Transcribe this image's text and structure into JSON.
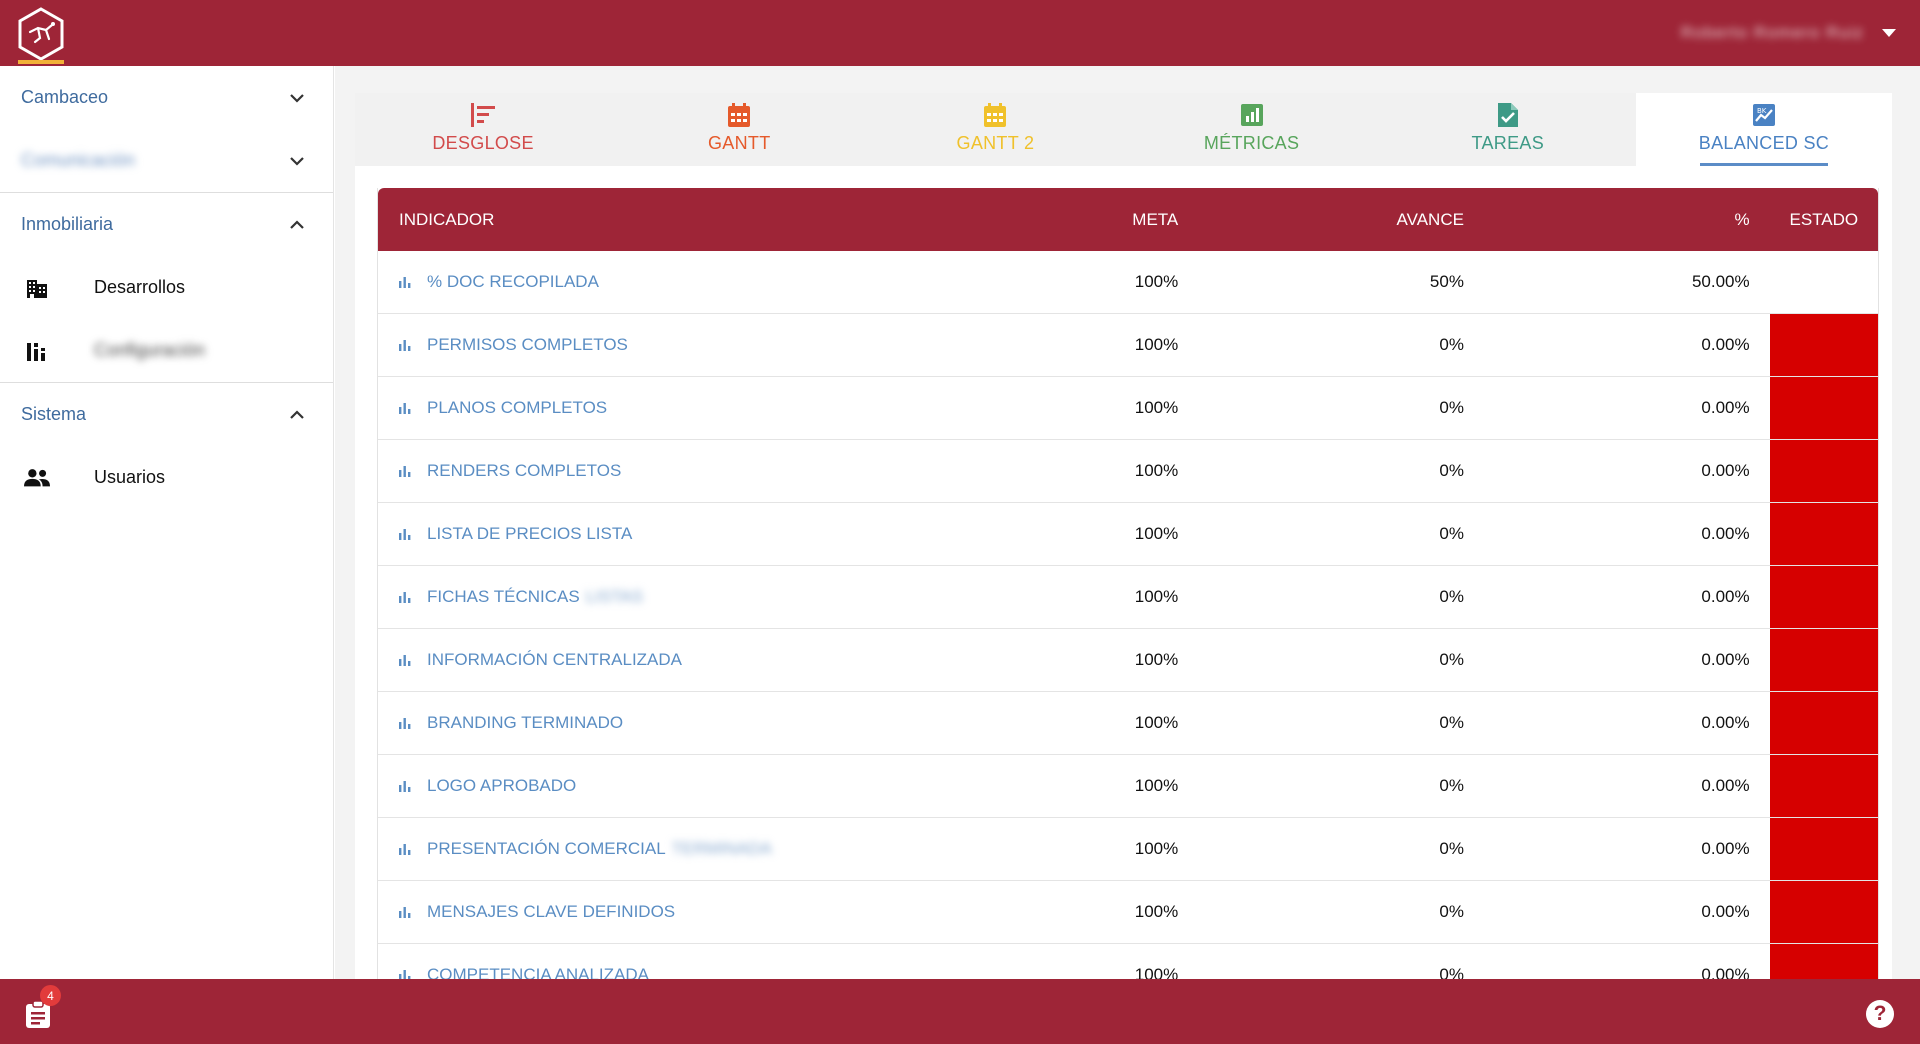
{
  "header": {
    "user_name": "Roberto Romero Ruiz",
    "user_menu_icon": "caret-down-icon",
    "logo_icon": "hex-logo-icon"
  },
  "sidebar": {
    "groups": [
      {
        "label": "Cambaceo",
        "expanded": false,
        "blurred": false
      },
      {
        "label": "Comunicación",
        "expanded": false,
        "blurred": true
      },
      {
        "label": "Inmobiliaria",
        "expanded": true,
        "blurred": false,
        "items": [
          {
            "label": "Desarrollos",
            "icon": "building-icon",
            "blurred": false
          },
          {
            "label": "Configuración",
            "icon": "chart-bars-icon",
            "blurred": true
          }
        ]
      },
      {
        "label": "Sistema",
        "expanded": true,
        "blurred": false,
        "items": [
          {
            "label": "Usuarios",
            "icon": "users-icon",
            "blurred": false
          }
        ]
      }
    ]
  },
  "tabs": [
    {
      "label": "DESGLOSE",
      "icon": "breakdown-icon",
      "color": "#d24b4b",
      "active": false
    },
    {
      "label": "GANTT",
      "icon": "calendar-icon",
      "color": "#e55a2b",
      "active": false
    },
    {
      "label": "GANTT 2",
      "icon": "calendar-icon",
      "color": "#f0c12b",
      "active": false
    },
    {
      "label": "MÉTRICAS",
      "icon": "metrics-icon",
      "color": "#58a55c",
      "active": false
    },
    {
      "label": "TAREAS",
      "icon": "task-file-icon",
      "color": "#3e9a86",
      "active": false
    },
    {
      "label": "BALANCED SC",
      "icon": "scorecard-icon",
      "color": "#4a82c3",
      "active": true
    }
  ],
  "table": {
    "headers": {
      "indicador": "INDICADOR",
      "meta": "META",
      "avance": "AVANCE",
      "pct": "%",
      "estado": "ESTADO"
    },
    "rows": [
      {
        "indicador": "% DOC RECOPILADA",
        "suffix": "",
        "meta": "100%",
        "avance": "50%",
        "pct": "50.00%",
        "estado_color": ""
      },
      {
        "indicador": "PERMISOS COMPLETOS",
        "suffix": "",
        "meta": "100%",
        "avance": "0%",
        "pct": "0.00%",
        "estado_color": "#d60000"
      },
      {
        "indicador": "PLANOS COMPLETOS",
        "suffix": "",
        "meta": "100%",
        "avance": "0%",
        "pct": "0.00%",
        "estado_color": "#d60000"
      },
      {
        "indicador": "RENDERS COMPLETOS",
        "suffix": "",
        "meta": "100%",
        "avance": "0%",
        "pct": "0.00%",
        "estado_color": "#d60000"
      },
      {
        "indicador": "LISTA DE PRECIOS LISTA",
        "suffix": "",
        "meta": "100%",
        "avance": "0%",
        "pct": "0.00%",
        "estado_color": "#d60000"
      },
      {
        "indicador": "FICHAS TÉCNICAS",
        "suffix": "LISTAS",
        "meta": "100%",
        "avance": "0%",
        "pct": "0.00%",
        "estado_color": "#d60000"
      },
      {
        "indicador": "INFORMACIÓN CENTRALIZADA",
        "suffix": "",
        "meta": "100%",
        "avance": "0%",
        "pct": "0.00%",
        "estado_color": "#d60000"
      },
      {
        "indicador": "BRANDING TERMINADO",
        "suffix": "",
        "meta": "100%",
        "avance": "0%",
        "pct": "0.00%",
        "estado_color": "#d60000"
      },
      {
        "indicador": "LOGO APROBADO",
        "suffix": "",
        "meta": "100%",
        "avance": "0%",
        "pct": "0.00%",
        "estado_color": "#d60000"
      },
      {
        "indicador": "PRESENTACIÓN COMERCIAL",
        "suffix": "TERMINADA",
        "meta": "100%",
        "avance": "0%",
        "pct": "0.00%",
        "estado_color": "#d60000"
      },
      {
        "indicador": "MENSAJES CLAVE DEFINIDOS",
        "suffix": "",
        "meta": "100%",
        "avance": "0%",
        "pct": "0.00%",
        "estado_color": "#d60000"
      },
      {
        "indicador": "COMPETENCIA ANALIZADA",
        "suffix": "",
        "meta": "100%",
        "avance": "0%",
        "pct": "0.00%",
        "estado_color": "#d60000"
      }
    ]
  },
  "footer": {
    "notifications_count": "4",
    "notifications_icon": "clipboard-icon",
    "help_icon": "help-icon",
    "help_label": "?"
  },
  "colors": {
    "brand": "#9e2537",
    "link": "#5a8dc3",
    "estado_bad": "#d60000"
  }
}
